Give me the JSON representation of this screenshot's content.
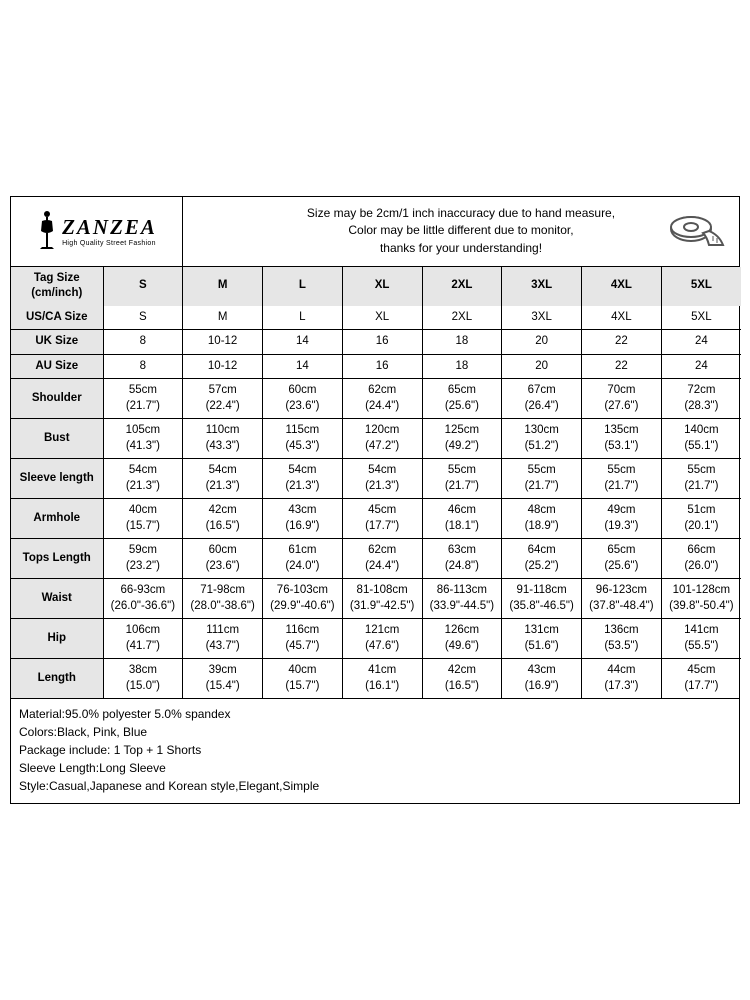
{
  "brand": {
    "name": "ZANZEA",
    "tagline": "High Quality Street Fashion"
  },
  "notice": {
    "line1": "Size may be 2cm/1 inch inaccuracy due to hand measure,",
    "line2": "Color may be little different due to monitor,",
    "line3": "thanks for your understanding!"
  },
  "columns": [
    "S",
    "M",
    "L",
    "XL",
    "2XL",
    "3XL",
    "4XL",
    "5XL"
  ],
  "header_label": "Tag Size\n(cm/inch)",
  "single_rows": [
    {
      "label": "US/CA Size",
      "cells": [
        "S",
        "M",
        "L",
        "XL",
        "2XL",
        "3XL",
        "4XL",
        "5XL"
      ]
    },
    {
      "label": "UK Size",
      "cells": [
        "8",
        "10-12",
        "14",
        "16",
        "18",
        "20",
        "22",
        "24"
      ]
    },
    {
      "label": "AU Size",
      "cells": [
        "8",
        "10-12",
        "14",
        "16",
        "18",
        "20",
        "22",
        "24"
      ]
    }
  ],
  "double_rows": [
    {
      "label": "Shoulder",
      "cells": [
        {
          "a": "55cm",
          "b": "(21.7\")"
        },
        {
          "a": "57cm",
          "b": "(22.4\")"
        },
        {
          "a": "60cm",
          "b": "(23.6\")"
        },
        {
          "a": "62cm",
          "b": "(24.4\")"
        },
        {
          "a": "65cm",
          "b": "(25.6\")"
        },
        {
          "a": "67cm",
          "b": "(26.4\")"
        },
        {
          "a": "70cm",
          "b": "(27.6\")"
        },
        {
          "a": "72cm",
          "b": "(28.3\")"
        }
      ]
    },
    {
      "label": "Bust",
      "cells": [
        {
          "a": "105cm",
          "b": "(41.3\")"
        },
        {
          "a": "110cm",
          "b": "(43.3\")"
        },
        {
          "a": "115cm",
          "b": "(45.3\")"
        },
        {
          "a": "120cm",
          "b": "(47.2\")"
        },
        {
          "a": "125cm",
          "b": "(49.2\")"
        },
        {
          "a": "130cm",
          "b": "(51.2\")"
        },
        {
          "a": "135cm",
          "b": "(53.1\")"
        },
        {
          "a": "140cm",
          "b": "(55.1\")"
        }
      ]
    },
    {
      "label": "Sleeve length",
      "cells": [
        {
          "a": "54cm",
          "b": "(21.3\")"
        },
        {
          "a": "54cm",
          "b": "(21.3\")"
        },
        {
          "a": "54cm",
          "b": "(21.3\")"
        },
        {
          "a": "54cm",
          "b": "(21.3\")"
        },
        {
          "a": "55cm",
          "b": "(21.7\")"
        },
        {
          "a": "55cm",
          "b": "(21.7\")"
        },
        {
          "a": "55cm",
          "b": "(21.7\")"
        },
        {
          "a": "55cm",
          "b": "(21.7\")"
        }
      ]
    },
    {
      "label": "Armhole",
      "cells": [
        {
          "a": "40cm",
          "b": "(15.7\")"
        },
        {
          "a": "42cm",
          "b": "(16.5\")"
        },
        {
          "a": "43cm",
          "b": "(16.9\")"
        },
        {
          "a": "45cm",
          "b": "(17.7\")"
        },
        {
          "a": "46cm",
          "b": "(18.1\")"
        },
        {
          "a": "48cm",
          "b": "(18.9\")"
        },
        {
          "a": "49cm",
          "b": "(19.3\")"
        },
        {
          "a": "51cm",
          "b": "(20.1\")"
        }
      ]
    },
    {
      "label": "Tops Length",
      "cells": [
        {
          "a": "59cm",
          "b": "(23.2\")"
        },
        {
          "a": "60cm",
          "b": "(23.6\")"
        },
        {
          "a": "61cm",
          "b": "(24.0\")"
        },
        {
          "a": "62cm",
          "b": "(24.4\")"
        },
        {
          "a": "63cm",
          "b": "(24.8\")"
        },
        {
          "a": "64cm",
          "b": "(25.2\")"
        },
        {
          "a": "65cm",
          "b": "(25.6\")"
        },
        {
          "a": "66cm",
          "b": "(26.0\")"
        }
      ]
    },
    {
      "label": "Waist",
      "cells": [
        {
          "a": "66-93cm",
          "b": "(26.0\"-36.6\")"
        },
        {
          "a": "71-98cm",
          "b": "(28.0\"-38.6\")"
        },
        {
          "a": "76-103cm",
          "b": "(29.9\"-40.6\")"
        },
        {
          "a": "81-108cm",
          "b": "(31.9\"-42.5\")"
        },
        {
          "a": "86-113cm",
          "b": "(33.9\"-44.5\")"
        },
        {
          "a": "91-118cm",
          "b": "(35.8\"-46.5\")"
        },
        {
          "a": "96-123cm",
          "b": "(37.8\"-48.4\")"
        },
        {
          "a": "101-128cm",
          "b": "(39.8\"-50.4\")"
        }
      ]
    },
    {
      "label": "Hip",
      "cells": [
        {
          "a": "106cm",
          "b": "(41.7\")"
        },
        {
          "a": "111cm",
          "b": "(43.7\")"
        },
        {
          "a": "116cm",
          "b": "(45.7\")"
        },
        {
          "a": "121cm",
          "b": "(47.6\")"
        },
        {
          "a": "126cm",
          "b": "(49.6\")"
        },
        {
          "a": "131cm",
          "b": "(51.6\")"
        },
        {
          "a": "136cm",
          "b": "(53.5\")"
        },
        {
          "a": "141cm",
          "b": "(55.5\")"
        }
      ]
    },
    {
      "label": "Length",
      "cells": [
        {
          "a": "38cm",
          "b": "(15.0\")"
        },
        {
          "a": "39cm",
          "b": "(15.4\")"
        },
        {
          "a": "40cm",
          "b": "(15.7\")"
        },
        {
          "a": "41cm",
          "b": "(16.1\")"
        },
        {
          "a": "42cm",
          "b": "(16.5\")"
        },
        {
          "a": "43cm",
          "b": "(16.9\")"
        },
        {
          "a": "44cm",
          "b": "(17.3\")"
        },
        {
          "a": "45cm",
          "b": "(17.7\")"
        }
      ]
    }
  ],
  "details": [
    "Material:95.0% polyester 5.0% spandex",
    "Colors:Black, Pink, Blue",
    "Package include: 1  Top + 1 Shorts",
    "Sleeve Length:Long Sleeve",
    "Style:Casual,Japanese and Korean style,Elegant,Simple"
  ],
  "style": {
    "border_color": "#000000",
    "header_bg": "#e6e6e6",
    "body_bg": "#ffffff",
    "font_color": "#000000",
    "notice_fontsize": 12,
    "cell_fontsize": 11.5,
    "details_fontsize": 12
  }
}
